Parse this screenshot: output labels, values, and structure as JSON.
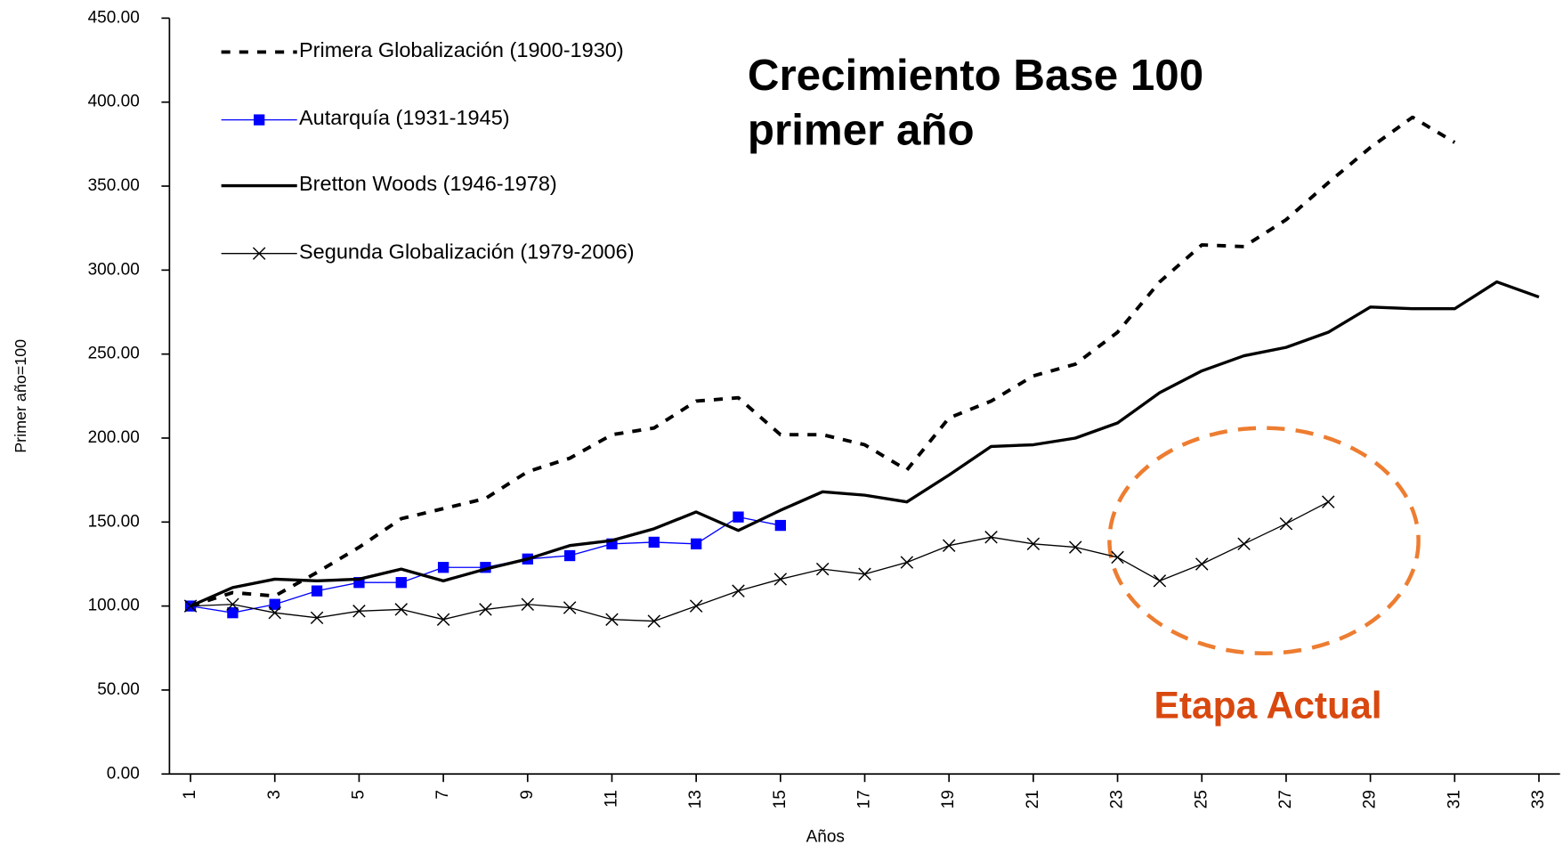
{
  "chart_data": {
    "type": "line",
    "title": [
      "Crecimiento Base 100",
      "primer año"
    ],
    "annotation": "Etapa Actual",
    "x_label": "Años",
    "y_label": "Primer año=100",
    "x": [
      1,
      2,
      3,
      4,
      5,
      6,
      7,
      8,
      9,
      10,
      11,
      12,
      13,
      14,
      15,
      16,
      17,
      18,
      19,
      20,
      21,
      22,
      23,
      24,
      25,
      26,
      27,
      28,
      29,
      30,
      31,
      32,
      33
    ],
    "xlim": [
      0.5,
      33.5
    ],
    "xticks": [
      1,
      3,
      5,
      7,
      9,
      11,
      13,
      15,
      17,
      19,
      21,
      23,
      25,
      27,
      29,
      31,
      33
    ],
    "ylim": [
      0,
      450
    ],
    "yticks": [
      {
        "value": 0,
        "label": "0.00"
      },
      {
        "value": 50,
        "label": "50.00"
      },
      {
        "value": 100,
        "label": "100.00"
      },
      {
        "value": 150,
        "label": "150.00"
      },
      {
        "value": 200,
        "label": "200.00"
      },
      {
        "value": 250,
        "label": "250.00"
      },
      {
        "value": 300,
        "label": "300.00"
      },
      {
        "value": 350,
        "label": "350.00"
      },
      {
        "value": 400,
        "label": "400.00"
      },
      {
        "value": 450,
        "label": "450.00"
      }
    ],
    "legend": "upper left",
    "series": [
      {
        "name": "Primera Globalización (1900-1930)",
        "color": "#000000",
        "line_style": "dotted",
        "width": 3.5,
        "marker": "none",
        "values": [
          100,
          108,
          106,
          120,
          135,
          152,
          158,
          164,
          180,
          188,
          202,
          206,
          222,
          224,
          202,
          202,
          196,
          181,
          212,
          222,
          237,
          244,
          263,
          293,
          315,
          314,
          330,
          352,
          373,
          391,
          376,
          null,
          null
        ]
      },
      {
        "name": "Autarquía (1931-1945)",
        "color": "#0000ff",
        "line_style": "solid",
        "width": 1.2,
        "marker": "square",
        "values": [
          100,
          96,
          101,
          109,
          114,
          114,
          123,
          123,
          128,
          130,
          137,
          138,
          137,
          153,
          148,
          null,
          null,
          null,
          null,
          null,
          null,
          null,
          null,
          null,
          null,
          null,
          null,
          null,
          null,
          null,
          null,
          null,
          null
        ]
      },
      {
        "name": "Bretton Woods (1946-1978)",
        "color": "#000000",
        "line_style": "solid",
        "width": 3,
        "marker": "none",
        "values": [
          100,
          111,
          116,
          115,
          116,
          122,
          115,
          122,
          128,
          136,
          139,
          146,
          156,
          145,
          157,
          168,
          166,
          162,
          178,
          195,
          196,
          200,
          209,
          227,
          240,
          249,
          254,
          263,
          278,
          277,
          277,
          293,
          284
        ]
      },
      {
        "name": "Segunda Globalización (1979-2006)",
        "color": "#000000",
        "line_style": "solid",
        "width": 1.2,
        "marker": "x",
        "values": [
          100,
          101,
          96,
          93,
          97,
          98,
          92,
          98,
          101,
          99,
          92,
          91,
          100,
          109,
          116,
          122,
          119,
          126,
          136,
          141,
          137,
          135,
          129,
          115,
          125,
          137,
          149,
          162,
          null,
          null,
          null,
          null,
          null
        ]
      }
    ]
  }
}
